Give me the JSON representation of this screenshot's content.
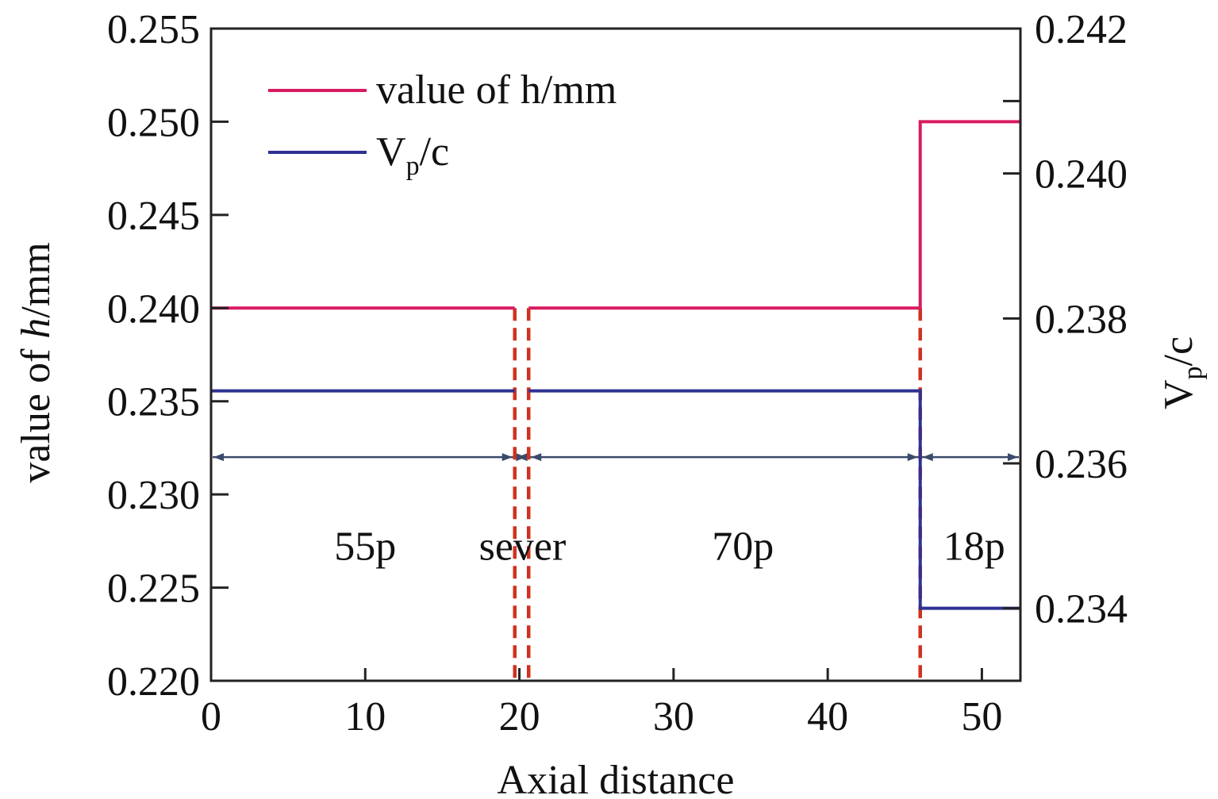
{
  "chart_data": {
    "type": "line",
    "xlabel": "Axial distance",
    "ylabel_left": {
      "prefix": "value of ",
      "italic": "h",
      "suffix": "/mm"
    },
    "ylabel_right": {
      "main": "V",
      "sub": "p",
      "tail": "/c"
    },
    "xlim": [
      0,
      52.5
    ],
    "ylim_left": [
      0.22,
      0.255
    ],
    "ylim_right": [
      0.233,
      0.242
    ],
    "x_ticks": [
      0,
      10,
      20,
      30,
      40,
      50
    ],
    "x_tick_labels": [
      "0",
      "10",
      "20",
      "30",
      "40",
      "50"
    ],
    "y_left_ticks": [
      0.22,
      0.225,
      0.23,
      0.235,
      0.24,
      0.245,
      0.25,
      0.255
    ],
    "y_left_tick_labels": [
      "0.220",
      "0.225",
      "0.230",
      "0.235",
      "0.240",
      "0.245",
      "0.250",
      "0.255"
    ],
    "y_right_ticks": [
      0.234,
      0.236,
      0.238,
      0.24,
      0.242
    ],
    "y_right_tick_labels": [
      "0.234",
      "0.236",
      "0.238",
      "0.240",
      "0.242"
    ],
    "y_right_minor_ticks": [
      0.241
    ],
    "grid": false,
    "legend_position": "top-left",
    "series": [
      {
        "name": "value of h/mm",
        "legend": {
          "main": "value of h/mm"
        },
        "axis": "left",
        "color": "#d81b60",
        "segments": [
          [
            [
              0,
              0.24
            ],
            [
              19.7,
              0.24
            ]
          ],
          [
            [
              20.6,
              0.24
            ],
            [
              46.0,
              0.24
            ],
            [
              46.0,
              0.25
            ],
            [
              52.5,
              0.25
            ]
          ]
        ]
      },
      {
        "name": "Vp/c",
        "legend": {
          "main": "V",
          "sub": "p",
          "tail": "/c"
        },
        "axis": "right",
        "color": "#2e3192",
        "segments": [
          [
            [
              0,
              0.237
            ],
            [
              19.7,
              0.237
            ]
          ],
          [
            [
              20.6,
              0.237
            ],
            [
              46.0,
              0.237
            ],
            [
              46.0,
              0.234
            ],
            [
              52.5,
              0.234
            ]
          ]
        ]
      }
    ],
    "dashed_lines_x": [
      19.7,
      20.6,
      46.0
    ],
    "dashed_color": "#d0311f",
    "dimension_arrows": {
      "y_left": 0.232,
      "color": "#3a4a6b",
      "spans": [
        [
          0,
          19.7
        ],
        [
          19.7,
          20.6
        ],
        [
          20.6,
          46.0
        ],
        [
          46.0,
          52.5
        ]
      ]
    },
    "segment_labels": [
      {
        "text": "55p",
        "x": 10
      },
      {
        "text": "sever",
        "x": 20.2
      },
      {
        "text": "70p",
        "x": 34.5
      },
      {
        "text": "18p",
        "x": 49.5
      }
    ],
    "segment_label_y_left": 0.2265
  }
}
